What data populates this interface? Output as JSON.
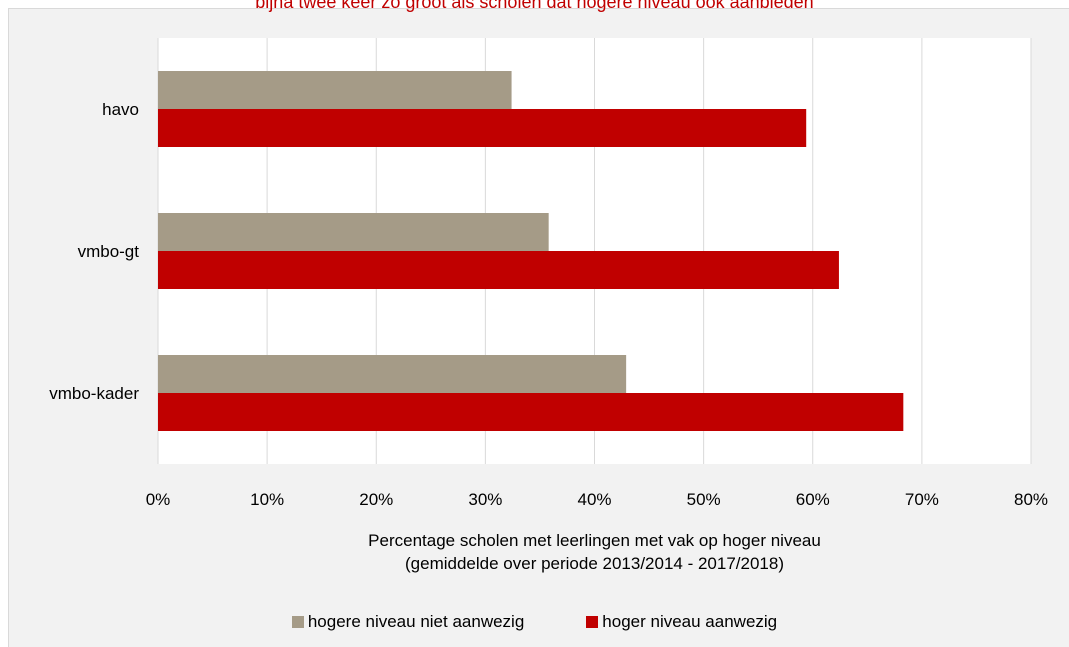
{
  "chart_data": {
    "type": "bar",
    "orientation": "horizontal",
    "title": "bijna twee keer zo groot als scholen dat hogere niveau ook aanbieden",
    "categories": [
      "havo",
      "vmbo-gt",
      "vmbo-kader"
    ],
    "series": [
      {
        "name": "hogere niveau niet aanwezig",
        "color": "#a59b87",
        "values": [
          32.4,
          35.8,
          42.9
        ]
      },
      {
        "name": "hoger niveau aanwezig",
        "color": "#c00000",
        "values": [
          59.4,
          62.4,
          68.3
        ]
      }
    ],
    "xticks": [
      "0%",
      "10%",
      "20%",
      "30%",
      "40%",
      "50%",
      "60%",
      "70%",
      "80%"
    ],
    "xlim": [
      0,
      80
    ],
    "xlabel_line1": "Percentage scholen met leerlingen met vak op hoger niveau",
    "xlabel_line2": "(gemiddelde over periode 2013/2014 - 2017/2018)",
    "grid": true,
    "legend_position": "bottom"
  }
}
